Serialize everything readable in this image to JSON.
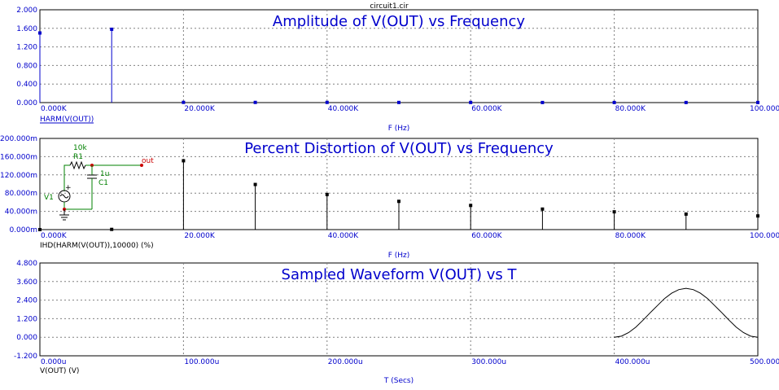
{
  "file_title": "circuit1.cir",
  "chart_data": [
    {
      "type": "bar",
      "title": "Amplitude of V(OUT) vs Frequency",
      "xlabel": "F (Hz)",
      "ylabel": "HARM(V(OUT))",
      "series_color": "#0000cc",
      "xlim": [
        0,
        100000
      ],
      "ylim": [
        0,
        2.0
      ],
      "x_ticks": [
        0,
        20000,
        40000,
        60000,
        80000,
        100000
      ],
      "x_tick_labels": [
        "0.000K",
        "20.000K",
        "40.000K",
        "60.000K",
        "80.000K",
        "100.000K"
      ],
      "y_ticks": [
        0,
        0.4,
        0.8,
        1.2,
        1.6,
        2.0
      ],
      "y_tick_labels": [
        "0.000",
        "0.400",
        "0.800",
        "1.200",
        "1.600",
        "2.000"
      ],
      "grid": true,
      "x": [
        0,
        10000,
        20000,
        30000,
        40000,
        50000,
        60000,
        70000,
        80000,
        90000,
        100000
      ],
      "values": [
        1.5,
        1.58,
        0.005,
        0.004,
        0.004,
        0.003,
        0.003,
        0.002,
        0.002,
        0.002,
        0.002
      ]
    },
    {
      "type": "bar",
      "title": "Percent Distortion of V(OUT) vs Frequency",
      "xlabel": "F (Hz)",
      "ylabel": "IHD(HARM(V(OUT)),10000) (%)",
      "series_color": "#000000",
      "xlim": [
        0,
        100000
      ],
      "ylim": [
        0,
        200
      ],
      "x_ticks": [
        0,
        20000,
        40000,
        60000,
        80000,
        100000
      ],
      "x_tick_labels": [
        "0.000K",
        "20.000K",
        "40.000K",
        "60.000K",
        "80.000K",
        "100.000K"
      ],
      "y_ticks": [
        0,
        40,
        80,
        120,
        160,
        200
      ],
      "y_tick_labels": [
        "0.000m",
        "40.000m",
        "80.000m",
        "120.000m",
        "160.000m",
        "200.000m"
      ],
      "grid": true,
      "x": [
        0,
        10000,
        20000,
        30000,
        40000,
        50000,
        60000,
        70000,
        80000,
        90000,
        100000
      ],
      "values": [
        0,
        0.5,
        151,
        99,
        77,
        62,
        53,
        45,
        39,
        34,
        30
      ]
    },
    {
      "type": "line",
      "title": "Sampled Waveform  V(OUT) vs T",
      "xlabel": "T (Secs)",
      "ylabel": "V(OUT) (V)",
      "series_color": "#000000",
      "xlim": [
        0,
        500
      ],
      "ylim": [
        -1.2,
        4.8
      ],
      "x_ticks": [
        0,
        100,
        200,
        300,
        400,
        500
      ],
      "x_tick_labels": [
        "0.000u",
        "100.000u",
        "200.000u",
        "300.000u",
        "400.000u",
        "500.000u"
      ],
      "y_ticks": [
        -1.2,
        0,
        1.2,
        2.4,
        3.6,
        4.8
      ],
      "y_tick_labels": [
        "-1.200",
        "0.000",
        "1.200",
        "2.400",
        "3.600",
        "4.800"
      ],
      "grid": true,
      "x": [
        400,
        405,
        410,
        415,
        420,
        425,
        430,
        435,
        440,
        445,
        450,
        455,
        460,
        465,
        470,
        475,
        480,
        485,
        490,
        495,
        500
      ],
      "y": [
        0.0,
        0.07,
        0.3,
        0.65,
        1.1,
        1.58,
        2.04,
        2.5,
        2.85,
        3.08,
        3.16,
        3.08,
        2.85,
        2.5,
        2.04,
        1.58,
        1.1,
        0.65,
        0.3,
        0.07,
        0.0
      ]
    }
  ],
  "schematic": {
    "r_value": "10k",
    "r_name": "R1",
    "c_value": "1u",
    "c_name": "C1",
    "source_name": "V1",
    "node_label": "out",
    "wire_color": "#008000",
    "node_color": "#cc0000"
  }
}
